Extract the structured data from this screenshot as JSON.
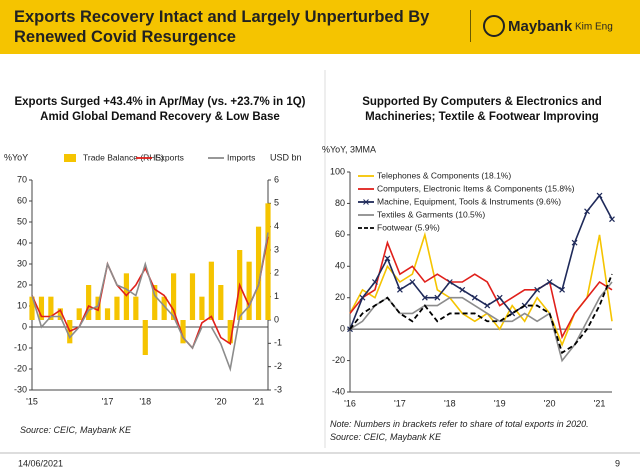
{
  "header": {
    "title": "Exports Recovery Intact and Largely Unperturbed By Renewed Covid Resurgence",
    "logo": "Maybank",
    "logo_sub": "Kim Eng"
  },
  "chart_data": [
    {
      "type": "bar-line",
      "title": "Exports Surged +43.4% in Apr/May (vs. +23.7% in 1Q) Amid Global Demand Recovery & Low Base",
      "y_label": "%YoY",
      "y2_label": "USD bn",
      "categories": [
        "'15",
        null,
        null,
        null,
        null,
        null,
        null,
        null,
        "'17",
        null,
        null,
        null,
        "'18",
        null,
        null,
        null,
        null,
        null,
        null,
        null,
        "'20",
        null,
        null,
        null,
        "'21",
        null
      ],
      "series": [
        {
          "name": "Trade Balance (RHS)",
          "color": "#f5c400",
          "kind": "bar",
          "axis": "y2",
          "values": [
            1,
            1,
            1,
            0.5,
            -1,
            0.5,
            1.5,
            1,
            0.5,
            1,
            2,
            1,
            -1.5,
            1.5,
            1,
            2,
            -1,
            2,
            1,
            2.5,
            1.5,
            -1,
            3,
            2.5,
            4,
            5
          ]
        },
        {
          "name": "Exports",
          "color": "#e0201b",
          "kind": "line",
          "values": [
            15,
            5,
            5,
            8,
            -2,
            0,
            10,
            8,
            30,
            20,
            15,
            20,
            28,
            18,
            15,
            8,
            -5,
            -10,
            2,
            5,
            -5,
            -8,
            20,
            10,
            20,
            43
          ]
        },
        {
          "name": "Imports",
          "color": "#8c8c8c",
          "kind": "line",
          "values": [
            15,
            0,
            5,
            5,
            -5,
            0,
            8,
            10,
            30,
            20,
            18,
            15,
            30,
            15,
            10,
            5,
            -5,
            -10,
            0,
            0,
            -8,
            -20,
            5,
            10,
            20,
            45
          ]
        }
      ],
      "ylim": [
        -30,
        70
      ],
      "yticks": [
        -30,
        -20,
        -10,
        0,
        10,
        20,
        30,
        40,
        50,
        60,
        70
      ],
      "y2lim": [
        -3,
        6
      ],
      "y2ticks": [
        -3,
        -2,
        -1,
        0,
        1,
        2,
        3,
        4,
        5,
        6
      ],
      "legend": "top",
      "source": "Source: CEIC, Maybank KE"
    },
    {
      "type": "line",
      "title": "Supported By Computers & Electronics and Machineries; Textile & Footwear Improving",
      "y_label": "%YoY, 3MMA",
      "categories": [
        "'16",
        null,
        null,
        null,
        "'17",
        null,
        null,
        null,
        "'18",
        null,
        null,
        null,
        "'19",
        null,
        null,
        null,
        "'20",
        null,
        null,
        null,
        "'21",
        null
      ],
      "series": [
        {
          "name": "Telephones & Components (18.1%)",
          "color": "#f5c400",
          "values": [
            10,
            25,
            20,
            40,
            30,
            35,
            60,
            25,
            20,
            10,
            5,
            10,
            0,
            15,
            5,
            20,
            10,
            -10,
            10,
            20,
            60,
            5
          ]
        },
        {
          "name": "Computers, Electronic Items & Components (15.8%)",
          "color": "#e0201b",
          "values": [
            10,
            20,
            25,
            55,
            35,
            40,
            30,
            35,
            30,
            30,
            35,
            30,
            15,
            20,
            25,
            25,
            30,
            -5,
            10,
            20,
            30,
            25
          ]
        },
        {
          "name": "Machine, Equipment, Tools & Instruments (9.6%)",
          "color": "#1f2a5a",
          "marker": "x",
          "values": [
            0,
            20,
            30,
            45,
            25,
            30,
            20,
            20,
            30,
            25,
            20,
            15,
            20,
            10,
            15,
            25,
            30,
            25,
            55,
            75,
            85,
            70
          ]
        },
        {
          "name": "Textiles & Garments (10.5%)",
          "color": "#8c8c8c",
          "values": [
            0,
            5,
            15,
            20,
            10,
            10,
            15,
            15,
            20,
            20,
            15,
            10,
            5,
            5,
            10,
            5,
            10,
            -20,
            -10,
            5,
            20,
            30
          ]
        },
        {
          "name": "Footwear (5.9%)",
          "color": "#000000",
          "style": "dashed",
          "values": [
            0,
            10,
            15,
            20,
            10,
            5,
            15,
            5,
            10,
            10,
            10,
            5,
            5,
            10,
            15,
            15,
            10,
            -15,
            -10,
            0,
            15,
            35
          ]
        }
      ],
      "ylim": [
        -40,
        100
      ],
      "yticks": [
        -40,
        -20,
        0,
        20,
        40,
        60,
        80,
        100
      ],
      "legend": "upper left",
      "note": "Note: Numbers in brackets refer to share of total exports in 2020.",
      "source": "Source: CEIC, Maybank KE"
    }
  ],
  "footer": {
    "date": "14/06/2021",
    "page": "9"
  }
}
